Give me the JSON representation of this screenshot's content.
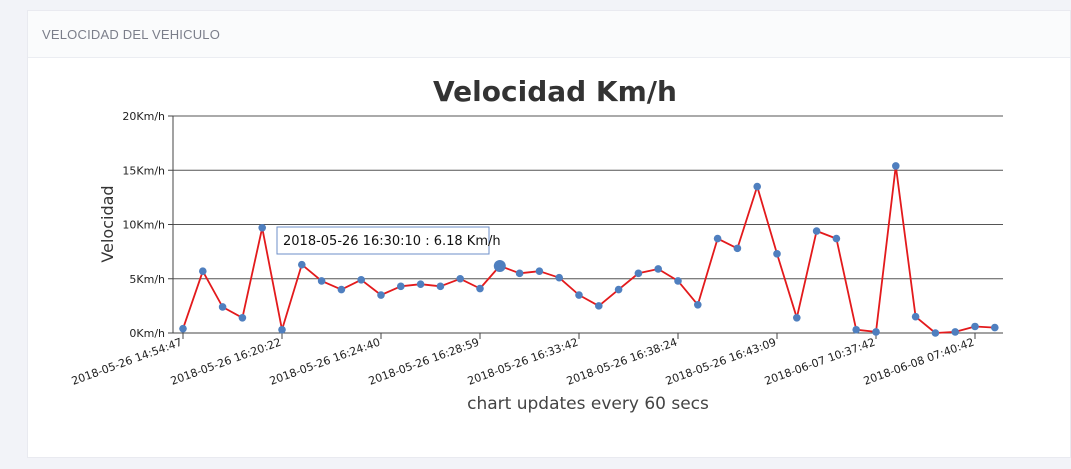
{
  "panel": {
    "title": "VELOCIDAD DEL VEHICULO"
  },
  "chart_data": {
    "type": "line",
    "title": "Velocidad Km/h",
    "ylabel": "Velocidad",
    "caption": "chart updates every 60 secs",
    "ylim": [
      0,
      20
    ],
    "yticks": [
      {
        "value": 0,
        "label": "0Km/h"
      },
      {
        "value": 5,
        "label": "5Km/h"
      },
      {
        "value": 10,
        "label": "10Km/h"
      },
      {
        "value": 15,
        "label": "15Km/h"
      },
      {
        "value": 20,
        "label": "20Km/h"
      }
    ],
    "xticks": [
      {
        "index": 0,
        "label": "2018-05-26 14:54:47"
      },
      {
        "index": 5,
        "label": "2018-05-26 16:20:22"
      },
      {
        "index": 10,
        "label": "2018-05-26 16:24:40"
      },
      {
        "index": 15,
        "label": "2018-05-26 16:28:59"
      },
      {
        "index": 20,
        "label": "2018-05-26 16:33:42"
      },
      {
        "index": 25,
        "label": "2018-05-26 16:38:24"
      },
      {
        "index": 30,
        "label": "2018-05-26 16:43:09"
      },
      {
        "index": 35,
        "label": "2018-06-07 10:37:42"
      },
      {
        "index": 40,
        "label": "2018-06-08 07:40:42"
      }
    ],
    "series": [
      {
        "color": "#e31a1c",
        "marker_color": "#4f7fbf",
        "values": [
          0.4,
          5.7,
          2.4,
          1.4,
          9.7,
          0.3,
          6.3,
          4.8,
          4.0,
          4.9,
          3.5,
          4.3,
          4.5,
          4.3,
          5.0,
          4.1,
          6.18,
          5.5,
          5.7,
          5.1,
          3.5,
          2.5,
          4.0,
          5.5,
          5.9,
          4.8,
          2.6,
          8.7,
          7.8,
          13.5,
          7.3,
          1.4,
          9.4,
          8.7,
          0.3,
          0.1,
          15.4,
          1.5,
          0.0,
          0.1,
          0.6,
          0.5
        ]
      }
    ],
    "highlight_index": 16,
    "tooltip": "2018-05-26 16:30:10 : 6.18 Km/h"
  }
}
